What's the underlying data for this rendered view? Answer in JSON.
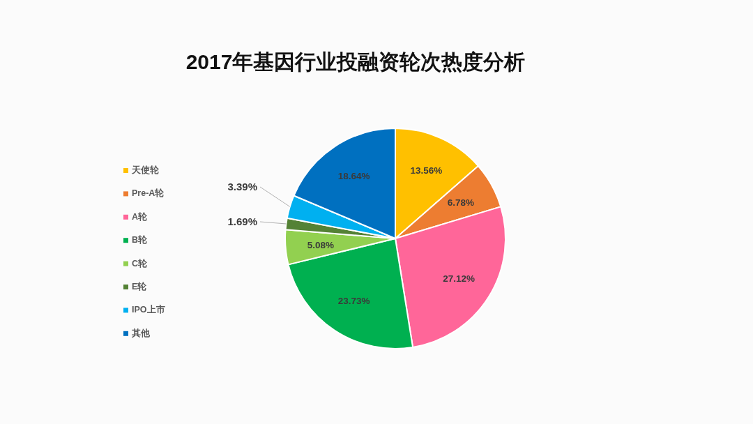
{
  "chart_data": {
    "type": "pie",
    "title": "2017年基因行业投融资轮次热度分析",
    "categories": [
      "天使轮",
      "Pre-A轮",
      "A轮",
      "B轮",
      "C轮",
      "E轮",
      "IPO上市",
      "其他"
    ],
    "values": [
      13.56,
      6.78,
      27.12,
      23.73,
      5.08,
      1.69,
      3.39,
      18.64
    ],
    "colors": [
      "#ffc000",
      "#ed7d31",
      "#ff6699",
      "#00b050",
      "#92d050",
      "#548235",
      "#00b0f0",
      "#0070c0"
    ],
    "value_labels": [
      "13.56%",
      "6.78%",
      "27.12%",
      "23.73%",
      "5.08%",
      "1.69%",
      "3.39%",
      "18.64%"
    ],
    "legend": "left"
  }
}
